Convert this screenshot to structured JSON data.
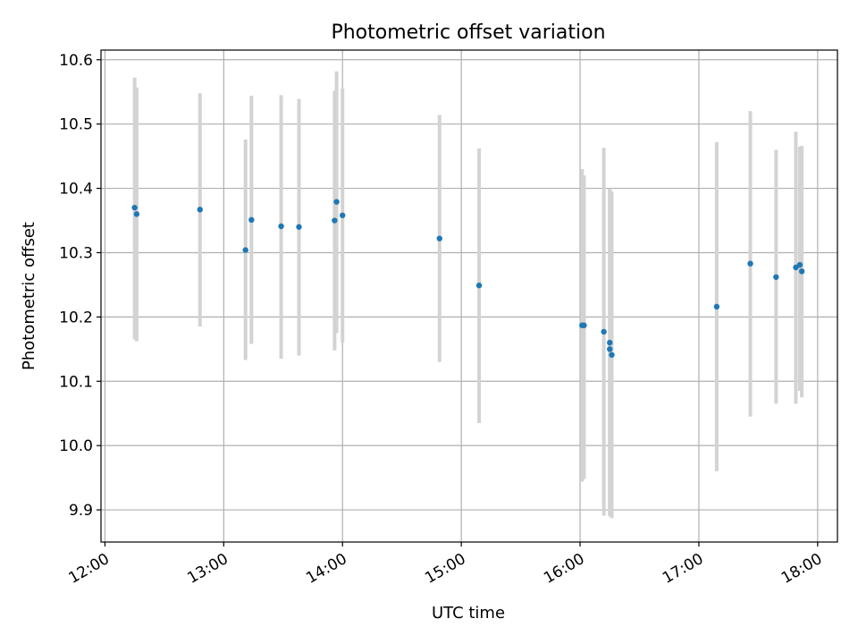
{
  "chart_data": {
    "type": "scatter",
    "title": "Photometric offset variation",
    "xlabel": "UTC time",
    "ylabel": "Photometric offset",
    "xlim": [
      "11:58",
      "18:10"
    ],
    "ylim": [
      9.85,
      10.615
    ],
    "x_ticks": [
      "12:00",
      "13:00",
      "14:00",
      "15:00",
      "16:00",
      "17:00",
      "18:00"
    ],
    "y_ticks": [
      "9.9",
      "10.0",
      "10.1",
      "10.2",
      "10.3",
      "10.4",
      "10.5",
      "10.6"
    ],
    "grid": true,
    "colors": {
      "point": "#1f77b4",
      "errorbar": "#d3d3d3",
      "grid": "#b0b0b0"
    },
    "points": [
      {
        "time": "12:15",
        "value": 10.37,
        "yerr_low": 10.165,
        "yerr_high": 10.572
      },
      {
        "time": "12:16",
        "value": 10.36,
        "yerr_low": 10.162,
        "yerr_high": 10.557
      },
      {
        "time": "12:48",
        "value": 10.367,
        "yerr_low": 10.185,
        "yerr_high": 10.548
      },
      {
        "time": "13:11",
        "value": 10.304,
        "yerr_low": 10.133,
        "yerr_high": 10.476
      },
      {
        "time": "13:14",
        "value": 10.351,
        "yerr_low": 10.158,
        "yerr_high": 10.544
      },
      {
        "time": "13:29",
        "value": 10.341,
        "yerr_low": 10.135,
        "yerr_high": 10.545
      },
      {
        "time": "13:38",
        "value": 10.34,
        "yerr_low": 10.14,
        "yerr_high": 10.539
      },
      {
        "time": "13:56",
        "value": 10.35,
        "yerr_low": 10.148,
        "yerr_high": 10.552
      },
      {
        "time": "13:57",
        "value": 10.379,
        "yerr_low": 10.175,
        "yerr_high": 10.582
      },
      {
        "time": "14:00",
        "value": 10.358,
        "yerr_low": 10.16,
        "yerr_high": 10.555
      },
      {
        "time": "14:49",
        "value": 10.322,
        "yerr_low": 10.13,
        "yerr_high": 10.514
      },
      {
        "time": "15:09",
        "value": 10.249,
        "yerr_low": 10.035,
        "yerr_high": 10.462
      },
      {
        "time": "16:01",
        "value": 10.187,
        "yerr_low": 9.944,
        "yerr_high": 10.43
      },
      {
        "time": "16:02",
        "value": 10.187,
        "yerr_low": 9.948,
        "yerr_high": 10.42
      },
      {
        "time": "16:12",
        "value": 10.177,
        "yerr_low": 9.891,
        "yerr_high": 10.463
      },
      {
        "time": "16:15",
        "value": 10.16,
        "yerr_low": 9.895,
        "yerr_high": 10.4
      },
      {
        "time": "16:15",
        "value": 10.15,
        "yerr_low": 9.89,
        "yerr_high": 10.398
      },
      {
        "time": "16:16",
        "value": 10.141,
        "yerr_low": 9.887,
        "yerr_high": 10.395
      },
      {
        "time": "17:09",
        "value": 10.216,
        "yerr_low": 9.96,
        "yerr_high": 10.472
      },
      {
        "time": "17:26",
        "value": 10.283,
        "yerr_low": 10.045,
        "yerr_high": 10.52
      },
      {
        "time": "17:39",
        "value": 10.262,
        "yerr_low": 10.065,
        "yerr_high": 10.46
      },
      {
        "time": "17:49",
        "value": 10.277,
        "yerr_low": 10.065,
        "yerr_high": 10.488
      },
      {
        "time": "17:51",
        "value": 10.281,
        "yerr_low": 10.085,
        "yerr_high": 10.465
      },
      {
        "time": "17:52",
        "value": 10.271,
        "yerr_low": 10.075,
        "yerr_high": 10.466
      }
    ]
  }
}
